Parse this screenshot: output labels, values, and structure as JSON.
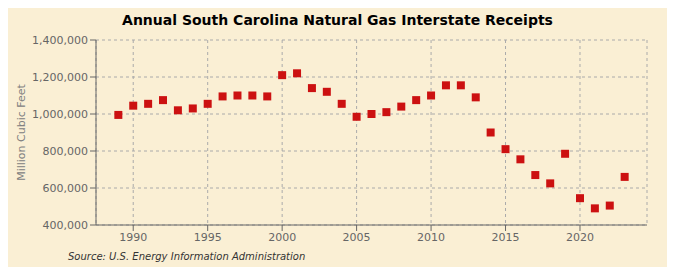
{
  "chart_data": {
    "type": "scatter",
    "title": "Annual South Carolina Natural Gas Interstate Receipts",
    "y_label": "Million Cubic Feet",
    "annotations": [
      "Source: U.S. Energy Information Administration"
    ],
    "x": [
      1989,
      1990,
      1991,
      1992,
      1993,
      1994,
      1995,
      1996,
      1997,
      1998,
      1999,
      2000,
      2001,
      2002,
      2003,
      2004,
      2005,
      2006,
      2007,
      2008,
      2009,
      2010,
      2011,
      2012,
      2013,
      2014,
      2015,
      2016,
      2017,
      2018,
      2019,
      2020,
      2021,
      2022,
      2023
    ],
    "values": [
      995000,
      1045000,
      1055000,
      1075000,
      1020000,
      1030000,
      1055000,
      1095000,
      1100000,
      1100000,
      1095000,
      1210000,
      1220000,
      1140000,
      1120000,
      1055000,
      985000,
      1000000,
      1010000,
      1040000,
      1075000,
      1100000,
      1155000,
      1155000,
      1090000,
      900000,
      810000,
      755000,
      670000,
      625000,
      785000,
      545000,
      490000,
      505000,
      660000
    ],
    "color": "#cc1111",
    "marker": "square",
    "xlim": [
      1987.5,
      2024.5
    ],
    "xticks": [
      1990,
      1995,
      2000,
      2005,
      2010,
      2015,
      2020
    ],
    "ylim": [
      400000,
      1400000
    ],
    "yticks": [
      {
        "value": 400000,
        "label": "400,000"
      },
      {
        "value": 600000,
        "label": "600,000"
      },
      {
        "value": 800000,
        "label": "800,000"
      },
      {
        "value": 1000000,
        "label": "1,000,000"
      },
      {
        "value": 1200000,
        "label": "1,200,000"
      },
      {
        "value": 1400000,
        "label": "1,400,000"
      }
    ],
    "grid": true
  }
}
